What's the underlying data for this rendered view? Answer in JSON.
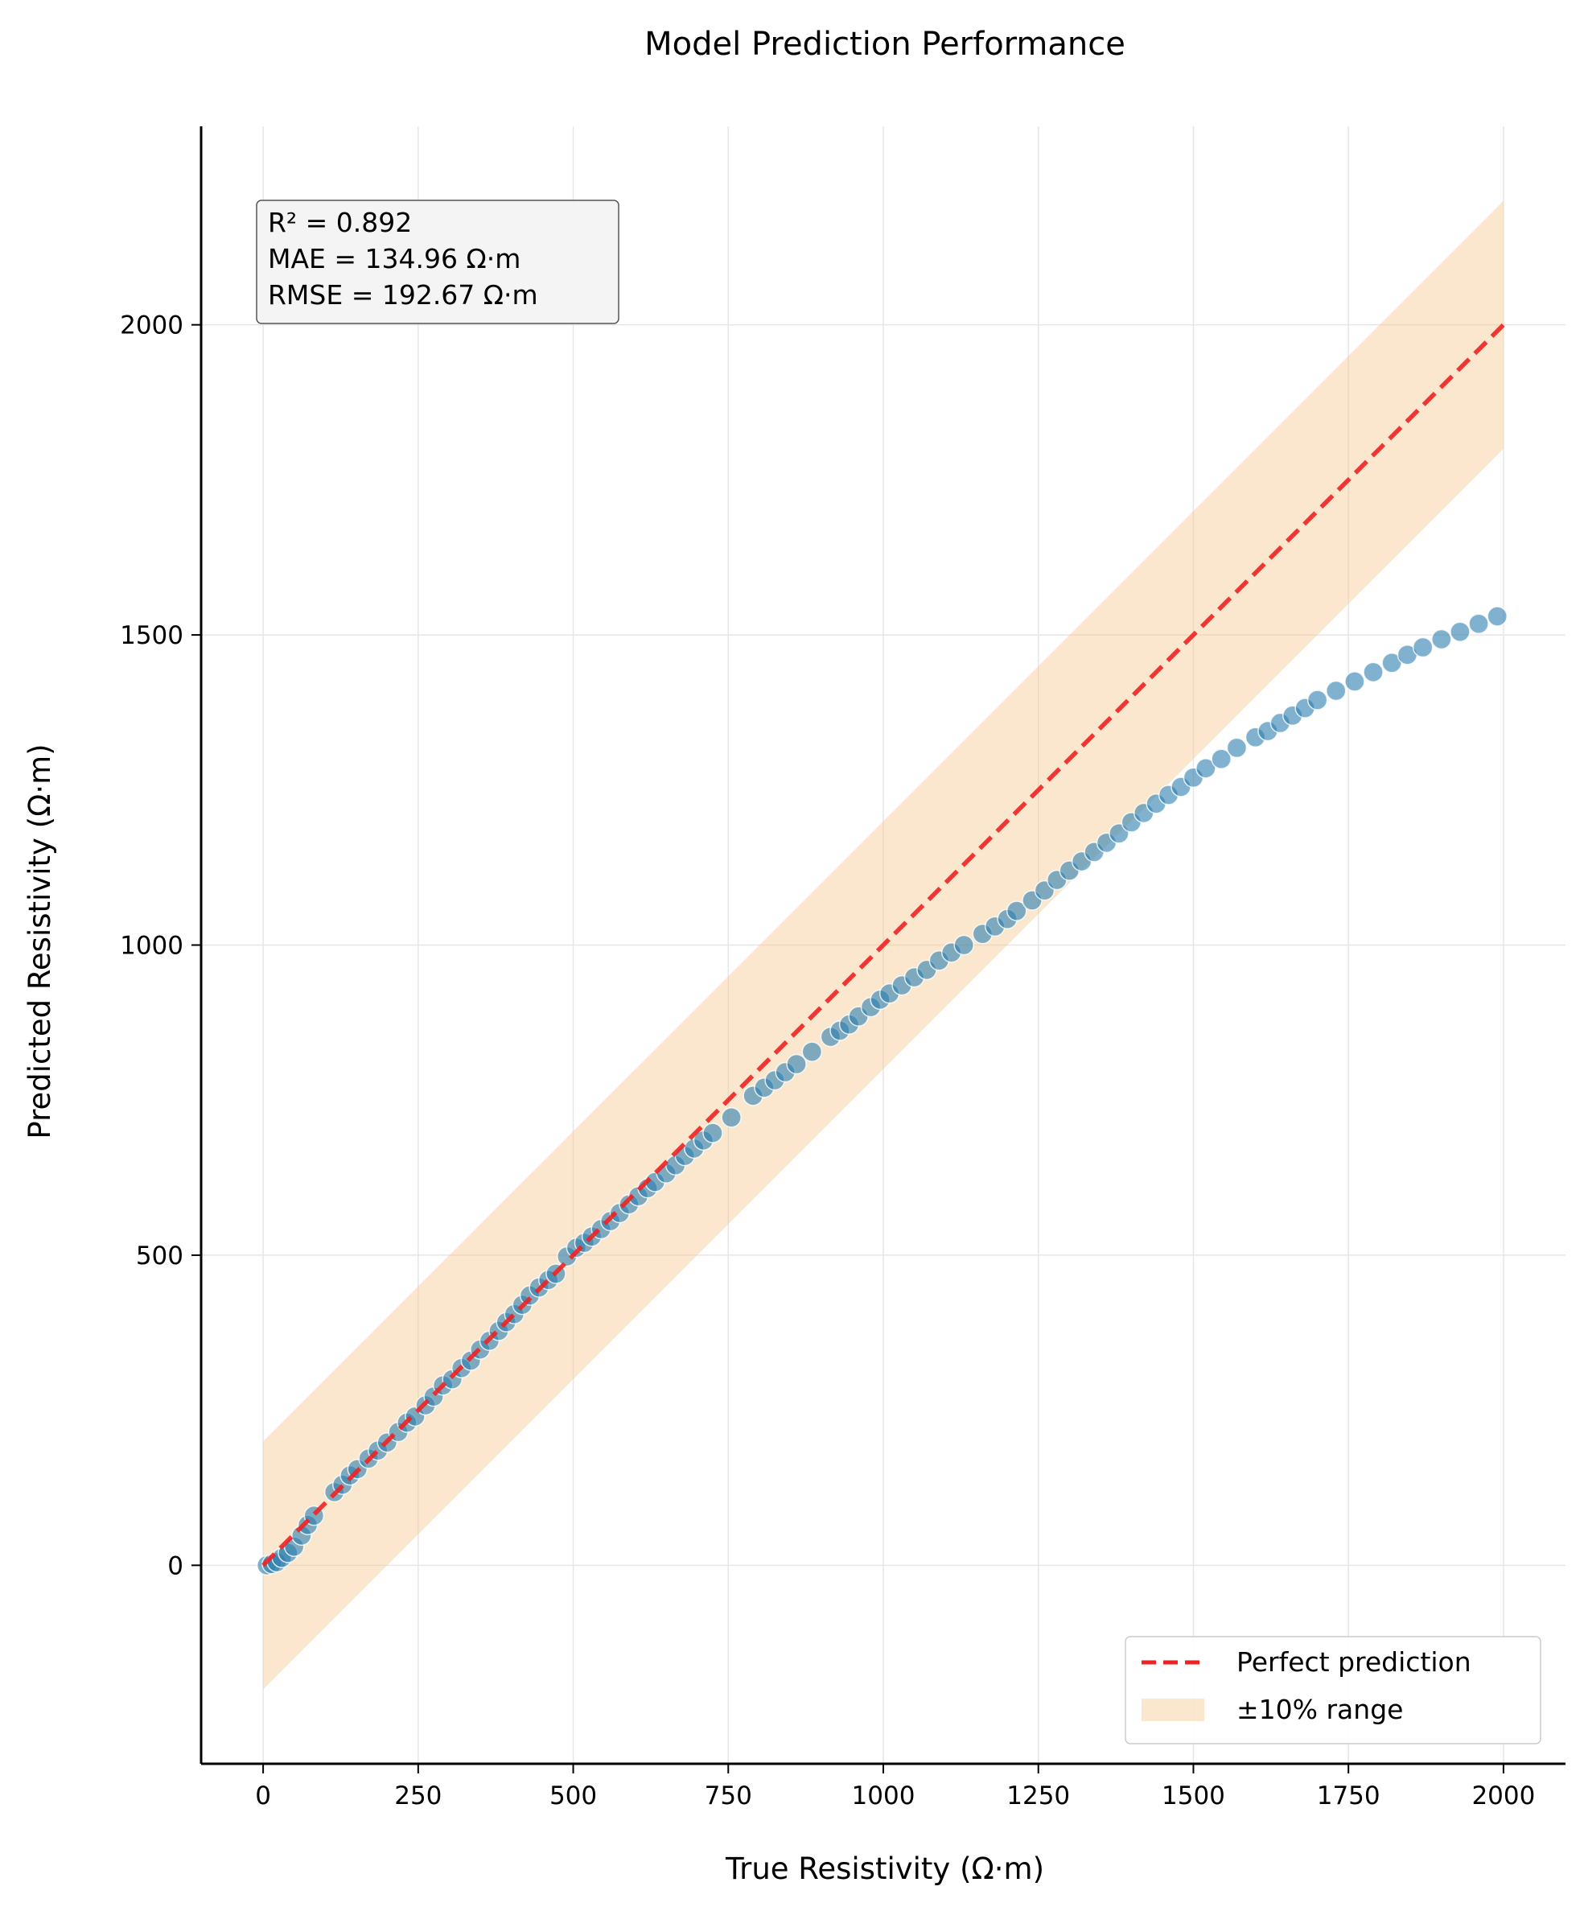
{
  "chart_data": {
    "type": "scatter",
    "title": "Model Prediction Performance",
    "xlabel": "True Resistivity (Ω·m)",
    "ylabel": "Predicted Resistivity (Ω·m)",
    "xlim": [
      -100,
      2100
    ],
    "ylim": [
      -320,
      2320
    ],
    "xticks": [
      0,
      250,
      500,
      750,
      1000,
      1250,
      1500,
      1750,
      2000
    ],
    "yticks": [
      0,
      500,
      1000,
      1500,
      2000
    ],
    "grid": true,
    "legend_position": "bottom-right",
    "stats": [
      "R² = 0.892",
      "MAE = 134.96 Ω·m",
      "RMSE = 192.67 Ω·m"
    ],
    "reference_line": {
      "name": "Perfect prediction",
      "x": [
        0,
        2000
      ],
      "y": [
        0,
        2000
      ],
      "color": "#ee2222",
      "style": "dashed"
    },
    "band": {
      "name": "±10% range",
      "x": [
        0,
        2000
      ],
      "offset": 200,
      "color": "#f5c992"
    },
    "series": [
      {
        "color": "#2c7fb0",
        "points": [
          [
            6,
            0
          ],
          [
            14,
            2
          ],
          [
            22,
            5
          ],
          [
            30,
            12
          ],
          [
            40,
            20
          ],
          [
            50,
            30
          ],
          [
            62,
            48
          ],
          [
            72,
            65
          ],
          [
            82,
            80
          ],
          [
            115,
            118
          ],
          [
            128,
            130
          ],
          [
            140,
            145
          ],
          [
            152,
            155
          ],
          [
            170,
            172
          ],
          [
            185,
            185
          ],
          [
            200,
            198
          ],
          [
            218,
            215
          ],
          [
            232,
            230
          ],
          [
            245,
            240
          ],
          [
            262,
            258
          ],
          [
            275,
            272
          ],
          [
            290,
            290
          ],
          [
            305,
            300
          ],
          [
            320,
            318
          ],
          [
            335,
            330
          ],
          [
            350,
            348
          ],
          [
            365,
            362
          ],
          [
            380,
            378
          ],
          [
            392,
            392
          ],
          [
            405,
            405
          ],
          [
            418,
            420
          ],
          [
            430,
            435
          ],
          [
            445,
            448
          ],
          [
            460,
            460
          ],
          [
            472,
            470
          ],
          [
            490,
            498
          ],
          [
            505,
            512
          ],
          [
            518,
            520
          ],
          [
            530,
            530
          ],
          [
            545,
            542
          ],
          [
            560,
            555
          ],
          [
            575,
            568
          ],
          [
            590,
            582
          ],
          [
            605,
            595
          ],
          [
            620,
            608
          ],
          [
            632,
            618
          ],
          [
            650,
            632
          ],
          [
            665,
            645
          ],
          [
            680,
            660
          ],
          [
            695,
            672
          ],
          [
            710,
            685
          ],
          [
            725,
            697
          ],
          [
            755,
            722
          ],
          [
            790,
            757
          ],
          [
            808,
            770
          ],
          [
            825,
            782
          ],
          [
            842,
            795
          ],
          [
            860,
            808
          ],
          [
            885,
            828
          ],
          [
            915,
            852
          ],
          [
            930,
            862
          ],
          [
            945,
            872
          ],
          [
            960,
            885
          ],
          [
            980,
            900
          ],
          [
            995,
            912
          ],
          [
            1010,
            922
          ],
          [
            1030,
            935
          ],
          [
            1050,
            948
          ],
          [
            1070,
            960
          ],
          [
            1090,
            975
          ],
          [
            1110,
            988
          ],
          [
            1130,
            1000
          ],
          [
            1160,
            1018
          ],
          [
            1180,
            1030
          ],
          [
            1200,
            1042
          ],
          [
            1215,
            1055
          ],
          [
            1240,
            1072
          ],
          [
            1260,
            1088
          ],
          [
            1280,
            1105
          ],
          [
            1300,
            1120
          ],
          [
            1320,
            1135
          ],
          [
            1340,
            1150
          ],
          [
            1360,
            1165
          ],
          [
            1380,
            1180
          ],
          [
            1400,
            1198
          ],
          [
            1420,
            1213
          ],
          [
            1440,
            1228
          ],
          [
            1460,
            1242
          ],
          [
            1480,
            1255
          ],
          [
            1500,
            1270
          ],
          [
            1520,
            1285
          ],
          [
            1545,
            1300
          ],
          [
            1570,
            1318
          ],
          [
            1600,
            1335
          ],
          [
            1620,
            1345
          ],
          [
            1640,
            1358
          ],
          [
            1660,
            1370
          ],
          [
            1680,
            1382
          ],
          [
            1700,
            1395
          ],
          [
            1730,
            1410
          ],
          [
            1760,
            1425
          ],
          [
            1790,
            1440
          ],
          [
            1820,
            1455
          ],
          [
            1845,
            1468
          ],
          [
            1870,
            1480
          ],
          [
            1900,
            1493
          ],
          [
            1930,
            1505
          ],
          [
            1960,
            1518
          ],
          [
            1990,
            1530
          ]
        ]
      }
    ]
  }
}
